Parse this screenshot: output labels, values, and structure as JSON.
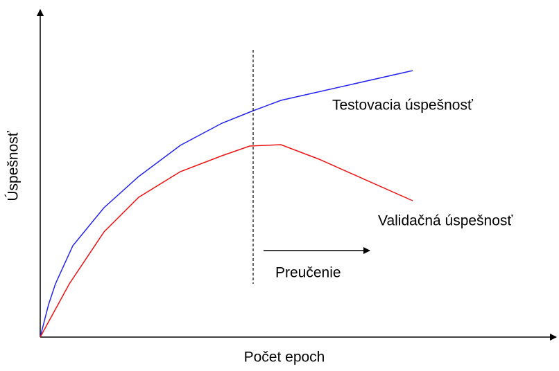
{
  "axes": {
    "y_label": "Úspešnosť",
    "x_label": "Počet epoch"
  },
  "curves": {
    "test_label": "Testovacia úspešnosť",
    "validation_label": "Validačná úspešnosť"
  },
  "annotation": {
    "overfitting_label": "Preučenie"
  }
}
